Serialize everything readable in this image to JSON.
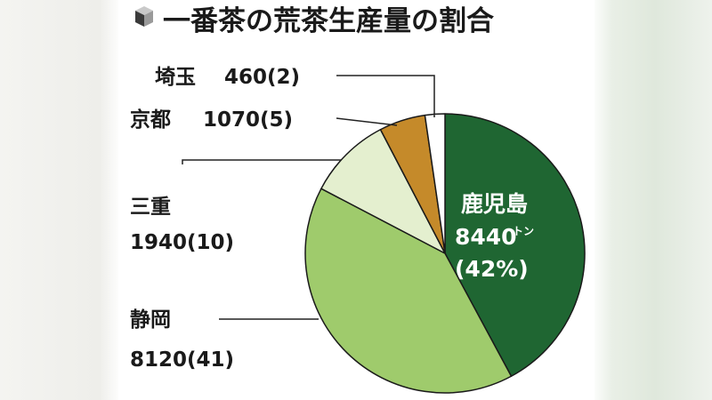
{
  "title": "一番茶の荒茶生産量の割合",
  "chart_data": {
    "type": "pie",
    "title": "一番茶の荒茶生産量の割合",
    "unit": "トン",
    "slices": [
      {
        "name": "鹿児島",
        "tons": 8440,
        "percent": 42,
        "value_label": "8440",
        "pct_label": "(42%)",
        "color": "#1f6632"
      },
      {
        "name": "静岡",
        "tons": 8120,
        "percent": 41,
        "value_label": "8120(41)",
        "color": "#9fcb6c"
      },
      {
        "name": "三重",
        "tons": 1940,
        "percent": 10,
        "value_label": "1940(10)",
        "color": "#e4efcf"
      },
      {
        "name": "京都",
        "tons": 1070,
        "percent": 5,
        "value_label": "1070(5)",
        "color": "#c58a2a"
      },
      {
        "name": "埼玉",
        "tons": 460,
        "percent": 2,
        "value_label": "460(2)",
        "color": "#ffffff"
      }
    ]
  }
}
